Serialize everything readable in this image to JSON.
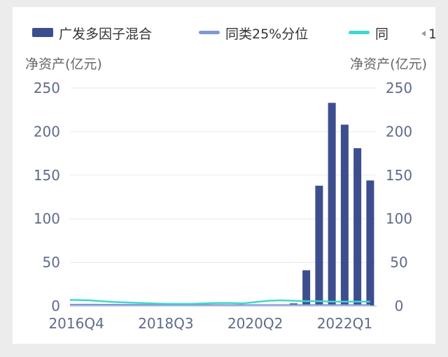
{
  "colors": {
    "bar": "#3d4e8f",
    "p25": "#7f97d8",
    "avg": "#3fd6d6",
    "grid": "#e7e9ef",
    "axis": "#c5c9d6"
  },
  "legend": {
    "items": [
      {
        "label": "广发多因子混合",
        "shape": "bar"
      },
      {
        "label": "同类25%分位",
        "shape": "line"
      },
      {
        "label": "同",
        "shape": "line"
      }
    ],
    "more_icon": "arrow-left-icon",
    "more_label": "1"
  },
  "chart_data": {
    "type": "bar",
    "left_axis_label": "净资产(亿元)",
    "right_axis_label": "净资产(亿元)",
    "ylim": [
      0,
      250
    ],
    "yticks": [
      "0",
      "50",
      "100",
      "150",
      "200",
      "250"
    ],
    "x_tick_labels": [
      "2016Q4",
      "2018Q3",
      "2020Q2",
      "2022Q1"
    ],
    "x": [
      "2016Q4",
      "2017Q1",
      "2017Q2",
      "2017Q3",
      "2017Q4",
      "2018Q1",
      "2018Q2",
      "2018Q3",
      "2018Q4",
      "2019Q1",
      "2019Q2",
      "2019Q3",
      "2019Q4",
      "2020Q1",
      "2020Q2",
      "2020Q3",
      "2020Q4",
      "2021Q1",
      "2021Q2",
      "2021Q3",
      "2021Q4",
      "2022Q1",
      "2022Q2",
      "2022Q3"
    ],
    "series": [
      {
        "name": "广发多因子混合",
        "type": "bar",
        "values": [
          0.6,
          0.6,
          0.6,
          0.6,
          0.6,
          0.6,
          0.6,
          0.6,
          0.6,
          0.6,
          0.6,
          0.6,
          0.6,
          0.6,
          0.6,
          0.6,
          0.6,
          3,
          41,
          138,
          233,
          208,
          181,
          144
        ]
      },
      {
        "name": "同类25%分位",
        "type": "line",
        "values": [
          1.5,
          1.5,
          1.4,
          1.4,
          1.3,
          1.3,
          1.2,
          1.2,
          1.2,
          1.1,
          1.1,
          1.1,
          1.0,
          1.0,
          1.0,
          1.0,
          1.0,
          1.0,
          1.0,
          1.0,
          1.0,
          1.0,
          1.0,
          1.0
        ]
      },
      {
        "name": "同",
        "type": "line",
        "values": [
          7,
          6.5,
          5.5,
          4.5,
          4,
          3.5,
          3,
          2.5,
          2.5,
          2.5,
          3,
          3.5,
          3.5,
          3,
          4.5,
          6,
          6.5,
          6,
          5.5,
          5.5,
          5,
          5,
          5,
          5
        ]
      }
    ],
    "grid": true,
    "legend_position": "top"
  }
}
